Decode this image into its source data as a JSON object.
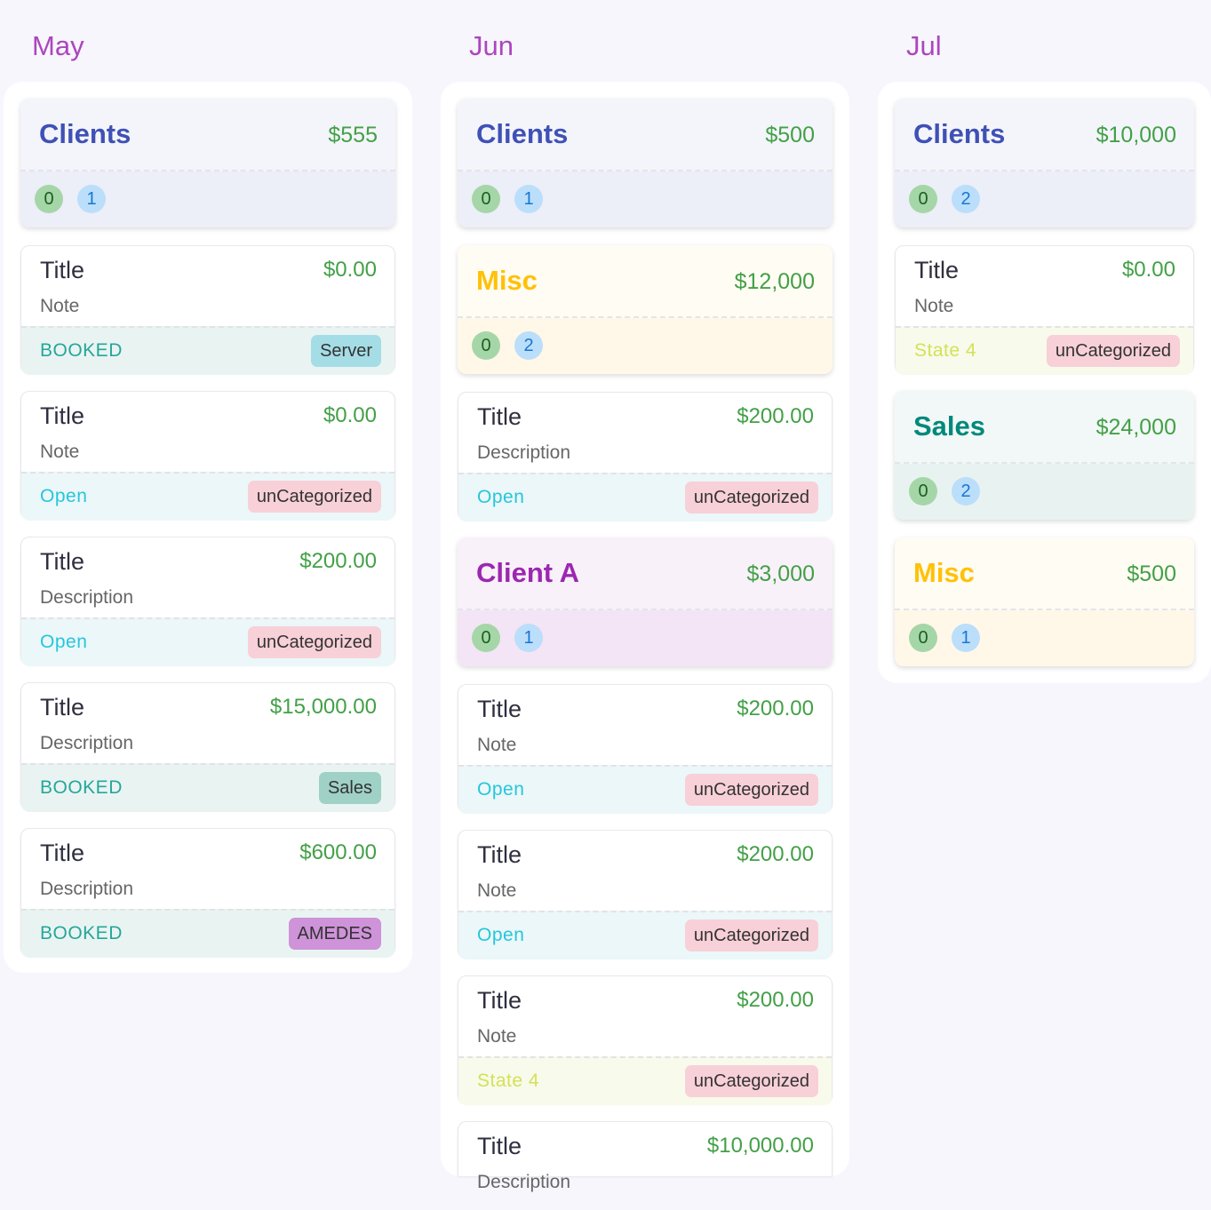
{
  "colors": {
    "month": "#ab47bc",
    "amount": "#43a047",
    "groups": {
      "Clients": {
        "title": "#3f51b5",
        "top": "#f4f5fb",
        "bottom": "#eceef8",
        "strip": "#dfe1ef"
      },
      "Misc": {
        "title": "#ffc107",
        "top": "#fffcf3",
        "bottom": "#fff7e8",
        "strip": "#fcefd6"
      },
      "Client A": {
        "title": "#9c27b0",
        "top": "#f8f1f9",
        "bottom": "#f3e5f5",
        "strip": "#ead6ee"
      },
      "Sales": {
        "title": "#00897b",
        "top": "#f2f8f7",
        "bottom": "#e8f3f1",
        "strip": "#d9ebe7"
      }
    },
    "statuses": {
      "BOOKED": {
        "text": "#26a69a",
        "bg": "#e9f4f2"
      },
      "Open": {
        "text": "#26c6da",
        "bg": "#ebf7f9"
      },
      "State 4": {
        "text": "#d4e157",
        "bg": "#f8faeb"
      }
    },
    "tags": {
      "Server": "#a5dde6",
      "unCategorized": "#f8d0d8",
      "Sales": "#9fd1c7",
      "AMEDES": "#ce93d8"
    }
  },
  "columns": [
    {
      "month": "May",
      "cards": [
        {
          "type": "group",
          "title": "Clients",
          "amount": "$555",
          "count_a": "0",
          "count_b": "1"
        },
        {
          "type": "item",
          "title": "Title",
          "amount": "$0.00",
          "note": "Note",
          "status": "BOOKED",
          "tag": "Server"
        },
        {
          "type": "item",
          "title": "Title",
          "amount": "$0.00",
          "note": "Note",
          "status": "Open",
          "tag": "unCategorized"
        },
        {
          "type": "item",
          "title": "Title",
          "amount": "$200.00",
          "note": "Description",
          "status": "Open",
          "tag": "unCategorized"
        },
        {
          "type": "item",
          "title": "Title",
          "amount": "$15,000.00",
          "note": "Description",
          "status": "BOOKED",
          "tag": "Sales"
        },
        {
          "type": "item",
          "title": "Title",
          "amount": "$600.00",
          "note": "Description",
          "status": "BOOKED",
          "tag": "AMEDES"
        }
      ]
    },
    {
      "month": "Jun",
      "cards": [
        {
          "type": "group",
          "title": "Clients",
          "amount": "$500",
          "count_a": "0",
          "count_b": "1"
        },
        {
          "type": "group",
          "title": "Misc",
          "amount": "$12,000",
          "count_a": "0",
          "count_b": "2"
        },
        {
          "type": "item",
          "title": "Title",
          "amount": "$200.00",
          "note": "Description",
          "status": "Open",
          "tag": "unCategorized"
        },
        {
          "type": "group",
          "title": "Client A",
          "amount": "$3,000",
          "count_a": "0",
          "count_b": "1"
        },
        {
          "type": "item",
          "title": "Title",
          "amount": "$200.00",
          "note": "Note",
          "status": "Open",
          "tag": "unCategorized"
        },
        {
          "type": "item",
          "title": "Title",
          "amount": "$200.00",
          "note": "Note",
          "status": "Open",
          "tag": "unCategorized"
        },
        {
          "type": "item",
          "title": "Title",
          "amount": "$200.00",
          "note": "Note",
          "status": "State 4",
          "tag": "unCategorized"
        },
        {
          "type": "item",
          "title": "Title",
          "amount": "$10,000.00",
          "note": "Description",
          "status": "",
          "tag": ""
        }
      ]
    },
    {
      "month": "Jul",
      "cards": [
        {
          "type": "group",
          "title": "Clients",
          "amount": "$10,000",
          "count_a": "0",
          "count_b": "2"
        },
        {
          "type": "item",
          "title": "Title",
          "amount": "$0.00",
          "note": "Note",
          "status": "State 4",
          "tag": "unCategorized"
        },
        {
          "type": "group",
          "title": "Sales",
          "amount": "$24,000",
          "count_a": "0",
          "count_b": "2"
        },
        {
          "type": "group",
          "title": "Misc",
          "amount": "$500",
          "count_a": "0",
          "count_b": "1"
        }
      ]
    }
  ]
}
